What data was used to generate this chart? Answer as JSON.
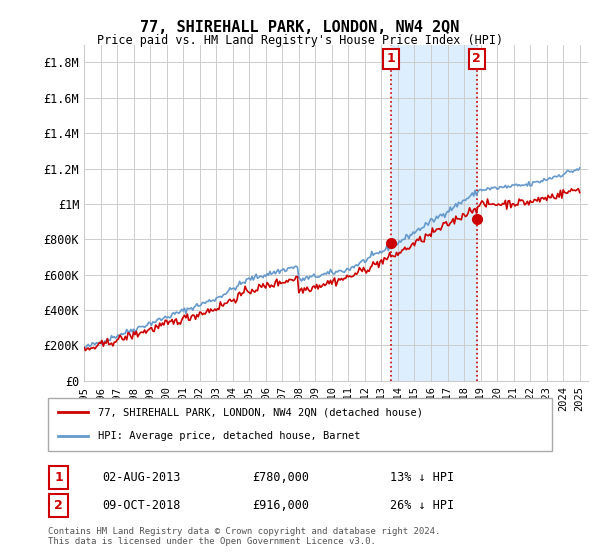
{
  "title": "77, SHIREHALL PARK, LONDON, NW4 2QN",
  "subtitle": "Price paid vs. HM Land Registry's House Price Index (HPI)",
  "ylabel_ticks": [
    "£0",
    "£200K",
    "£400K",
    "£600K",
    "£800K",
    "£1M",
    "£1.2M",
    "£1.4M",
    "£1.6M",
    "£1.8M"
  ],
  "ytick_values": [
    0,
    200000,
    400000,
    600000,
    800000,
    1000000,
    1200000,
    1400000,
    1600000,
    1800000
  ],
  "ylim": [
    0,
    1900000
  ],
  "xlim_start": 1995,
  "xlim_end": 2025.5,
  "hpi_color": "#6699cc",
  "price_color": "#cc0000",
  "shade_color": "#ddeeff",
  "marker1_date": 2013.58,
  "marker1_price": 780000,
  "marker1_label": "1",
  "marker1_text": "02-AUG-2013",
  "marker1_value": "£780,000",
  "marker1_pct": "13% ↓ HPI",
  "marker2_date": 2018.77,
  "marker2_price": 916000,
  "marker2_label": "2",
  "marker2_text": "09-OCT-2018",
  "marker2_value": "£916,000",
  "marker2_pct": "26% ↓ HPI",
  "legend_line1": "77, SHIREHALL PARK, LONDON, NW4 2QN (detached house)",
  "legend_line2": "HPI: Average price, detached house, Barnet",
  "footer": "Contains HM Land Registry data © Crown copyright and database right 2024.\nThis data is licensed under the Open Government Licence v3.0.",
  "xtick_years": [
    1995,
    1996,
    1997,
    1998,
    1999,
    2000,
    2001,
    2002,
    2003,
    2004,
    2005,
    2006,
    2007,
    2008,
    2009,
    2010,
    2011,
    2012,
    2013,
    2014,
    2015,
    2016,
    2017,
    2018,
    2019,
    2020,
    2021,
    2022,
    2023,
    2024,
    2025
  ]
}
